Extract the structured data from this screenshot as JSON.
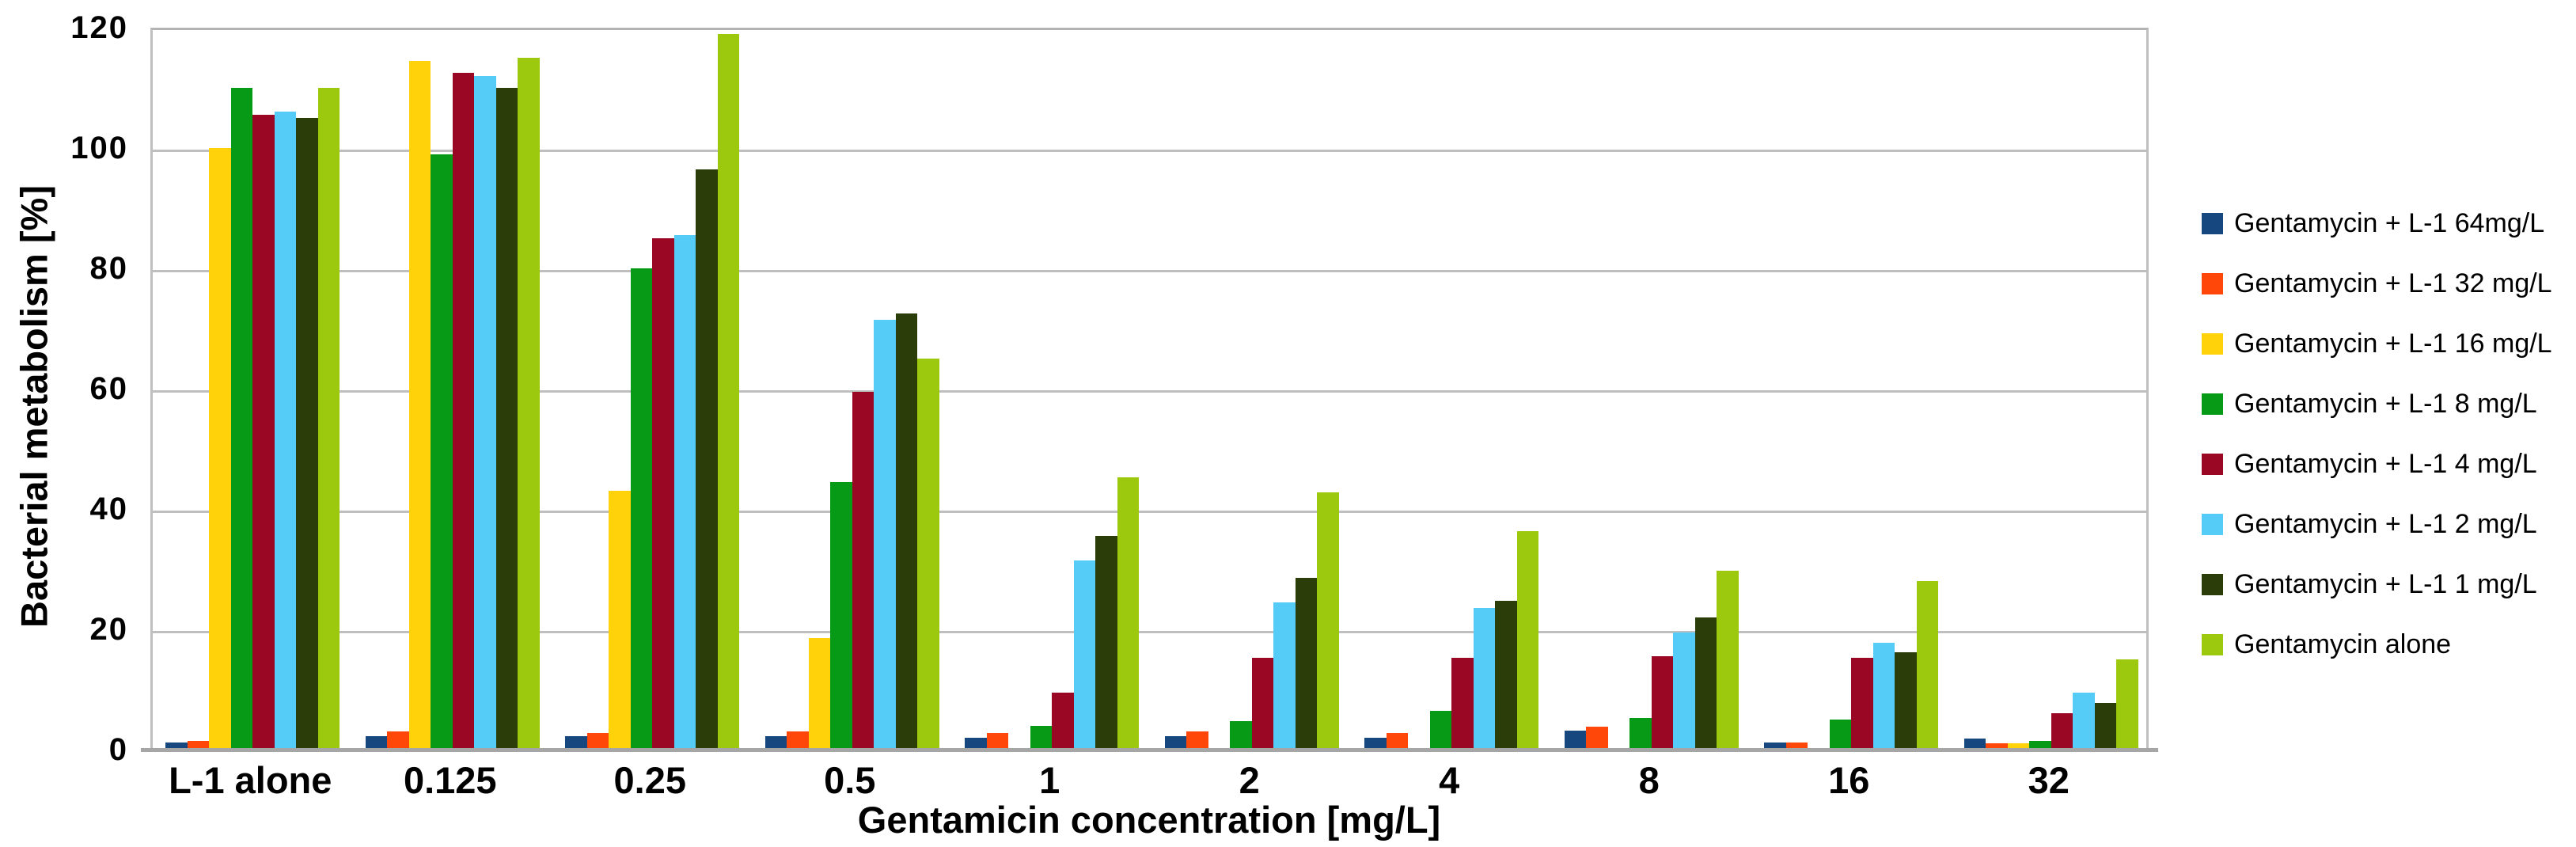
{
  "chart_data": {
    "type": "bar",
    "title": "",
    "xlabel": "Gentamicin concentration [mg/L]",
    "ylabel": "Bacterial metabolism [%]",
    "categories": [
      "L-1 alone",
      "0.125",
      "0.25",
      "0.5",
      "1",
      "2",
      "4",
      "8",
      "16",
      "32"
    ],
    "series": [
      {
        "name": "Gentamycin + L-1 64mg/L",
        "color": "#17477F",
        "values": [
          1.2,
          2.2,
          2.2,
          2.2,
          2.0,
          2.2,
          2.0,
          3.2,
          1.2,
          1.8
        ]
      },
      {
        "name": "Gentamycin + L-1 32 mg/L",
        "color": "#FF4709",
        "values": [
          1.5,
          3.0,
          2.8,
          3.0,
          2.8,
          3.0,
          2.8,
          3.8,
          1.2,
          1.0
        ]
      },
      {
        "name": "Gentamycin + L-1 16 mg/L",
        "color": "#FFD20A",
        "values": [
          100,
          114.5,
          43,
          18.5,
          0,
          0,
          0,
          0,
          0,
          1.0
        ]
      },
      {
        "name": "Gentamycin + L-1 8 mg/L",
        "color": "#079A16",
        "values": [
          110,
          99,
          80,
          44.5,
          4.0,
          4.8,
          6.5,
          5.2,
          5.0,
          1.5
        ]
      },
      {
        "name": "Gentamycin + L-1 4 mg/L",
        "color": "#9A0724",
        "values": [
          105.5,
          112.5,
          85,
          59.5,
          9.5,
          15.2,
          15.2,
          15.5,
          15.2,
          6.0
        ]
      },
      {
        "name": "Gentamycin + L-1 2 mg/L",
        "color": "#55CBF8",
        "values": [
          106,
          112,
          85.5,
          71.5,
          31.5,
          24.5,
          23.5,
          19.5,
          17.8,
          9.5
        ]
      },
      {
        "name": "Gentamycin + L-1 1 mg/L",
        "color": "#2B3D08",
        "values": [
          105,
          110,
          96.5,
          72.5,
          35.5,
          28.5,
          24.7,
          22,
          16.2,
          7.8
        ]
      },
      {
        "name": "Gentamycin alone",
        "color": "#9CC80D",
        "values": [
          110,
          115,
          119,
          65,
          45.3,
          42.8,
          36.3,
          29.7,
          28,
          15
        ]
      }
    ],
    "ylim": [
      0,
      120
    ],
    "yticks": [
      0,
      20,
      40,
      60,
      80,
      100,
      120
    ],
    "grid": true,
    "legend_position": "right"
  },
  "colors": {
    "gridline": "#bfbfbf",
    "axis_line": "#a6a6a6",
    "background": "#ffffff",
    "text": "#000000"
  }
}
